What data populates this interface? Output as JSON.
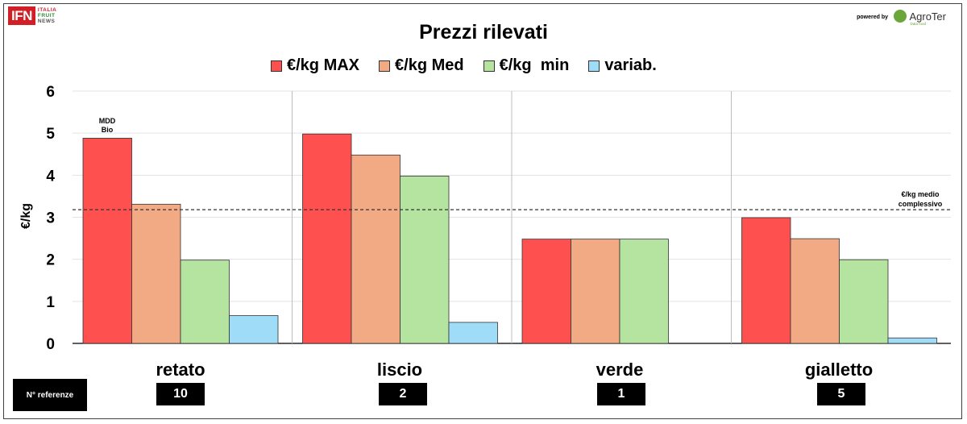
{
  "logo": {
    "ifn": "IFN",
    "line1": "ITALIA",
    "line2": "FRUIT",
    "line3": "NEWS"
  },
  "powered_by": "powered by",
  "agroter": {
    "name": "AgroTer",
    "tagline": "Data food"
  },
  "colors": {
    "max": "#ff5050",
    "med": "#f2aa84",
    "min": "#b5e3a0",
    "variab": "#9fdcf7"
  },
  "chart_data": {
    "type": "bar",
    "title": "Prezzi rilevati",
    "ylabel": "€/kg",
    "ylim": [
      0,
      6
    ],
    "yticks": [
      "0",
      "1",
      "2",
      "3",
      "4",
      "5",
      "6"
    ],
    "legend_position": "top",
    "grid": true,
    "categories": [
      "retato",
      "liscio",
      "verde",
      "gialletto"
    ],
    "series": [
      {
        "name": "€/kg MAX",
        "values": [
          4.88,
          4.98,
          2.48,
          2.99
        ]
      },
      {
        "name": "€/kg Med",
        "values": [
          3.31,
          4.48,
          2.48,
          2.49
        ]
      },
      {
        "name": "€/kg  min",
        "values": [
          1.98,
          3.98,
          2.48,
          1.99
        ]
      },
      {
        "name": "variab.",
        "values": [
          0.66,
          0.5,
          0,
          0.13
        ]
      }
    ],
    "reference_line": {
      "value": 3.18,
      "label_line1": "€/kg medio",
      "label_line2": "complessivo"
    },
    "annotation": {
      "line1": "MDD",
      "line2": "Bio"
    }
  },
  "referenze": {
    "label": "N° referenze",
    "counts": [
      "10",
      "2",
      "1",
      "5"
    ]
  }
}
